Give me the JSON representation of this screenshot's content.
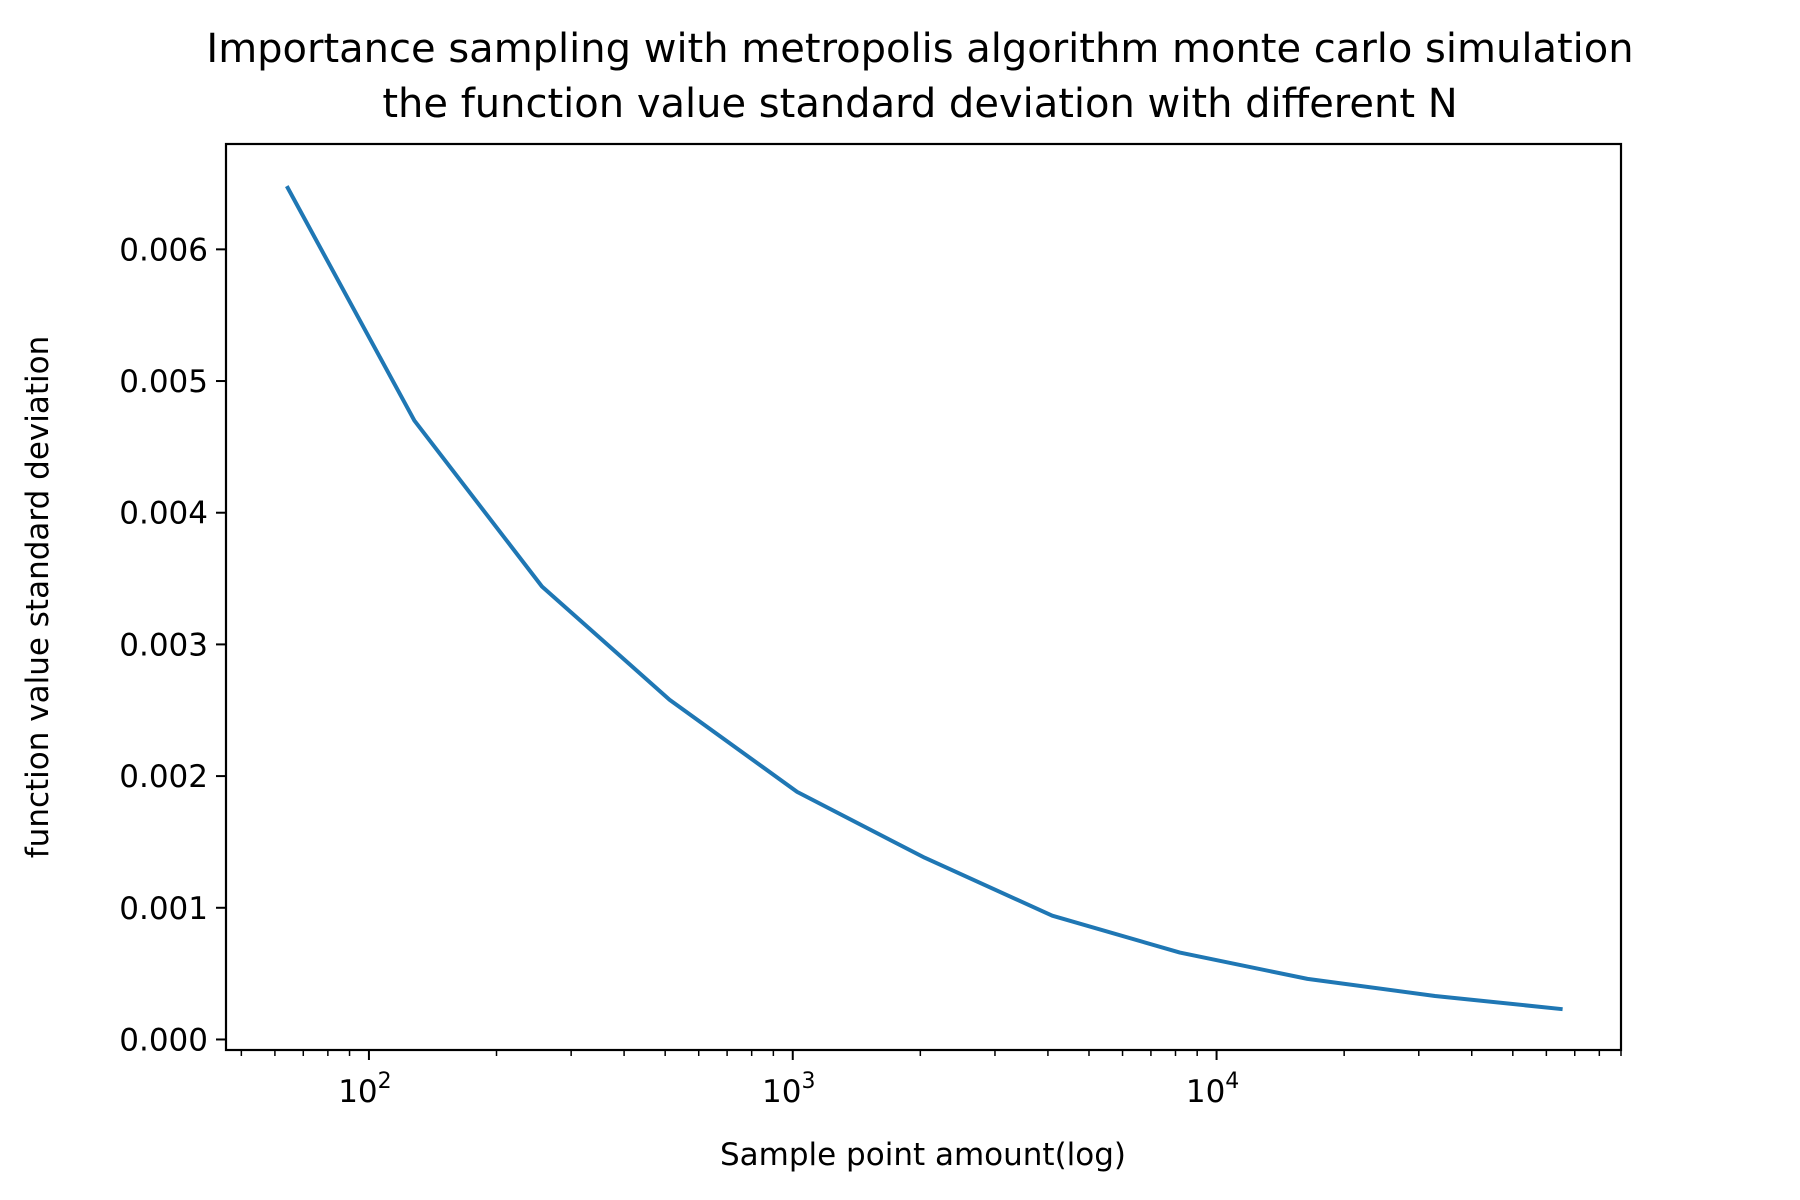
{
  "chart_data": {
    "type": "line",
    "title": [
      "Importance sampling with metropolis algorithm monte carlo simulation",
      "the function value standard deviation with different N"
    ],
    "xlabel": "Sample point amount(log)",
    "ylabel": "function value standard deviation",
    "xscale": "log",
    "xlim": [
      46,
      90000
    ],
    "ylim": [
      -8e-05,
      0.0068
    ],
    "xticks": [
      {
        "base": "10",
        "exp": "2",
        "value": 100
      },
      {
        "base": "10",
        "exp": "3",
        "value": 1000
      },
      {
        "base": "10",
        "exp": "4",
        "value": 10000
      }
    ],
    "yticks": [
      {
        "value": 0.0,
        "label": "0.000"
      },
      {
        "value": 0.001,
        "label": "0.001"
      },
      {
        "value": 0.002,
        "label": "0.002"
      },
      {
        "value": 0.003,
        "label": "0.003"
      },
      {
        "value": 0.004,
        "label": "0.004"
      },
      {
        "value": 0.005,
        "label": "0.005"
      },
      {
        "value": 0.006,
        "label": "0.006"
      }
    ],
    "grid": false,
    "legend": "none",
    "series": [
      {
        "color": "#1f77b4",
        "x": [
          64,
          128,
          256,
          512,
          1024,
          2048,
          4096,
          8192,
          16384,
          32768,
          65536
        ],
        "y": [
          0.00648,
          0.0047,
          0.00344,
          0.00258,
          0.00188,
          0.00138,
          0.00094,
          0.00066,
          0.00046,
          0.00033,
          0.00023
        ]
      }
    ]
  }
}
